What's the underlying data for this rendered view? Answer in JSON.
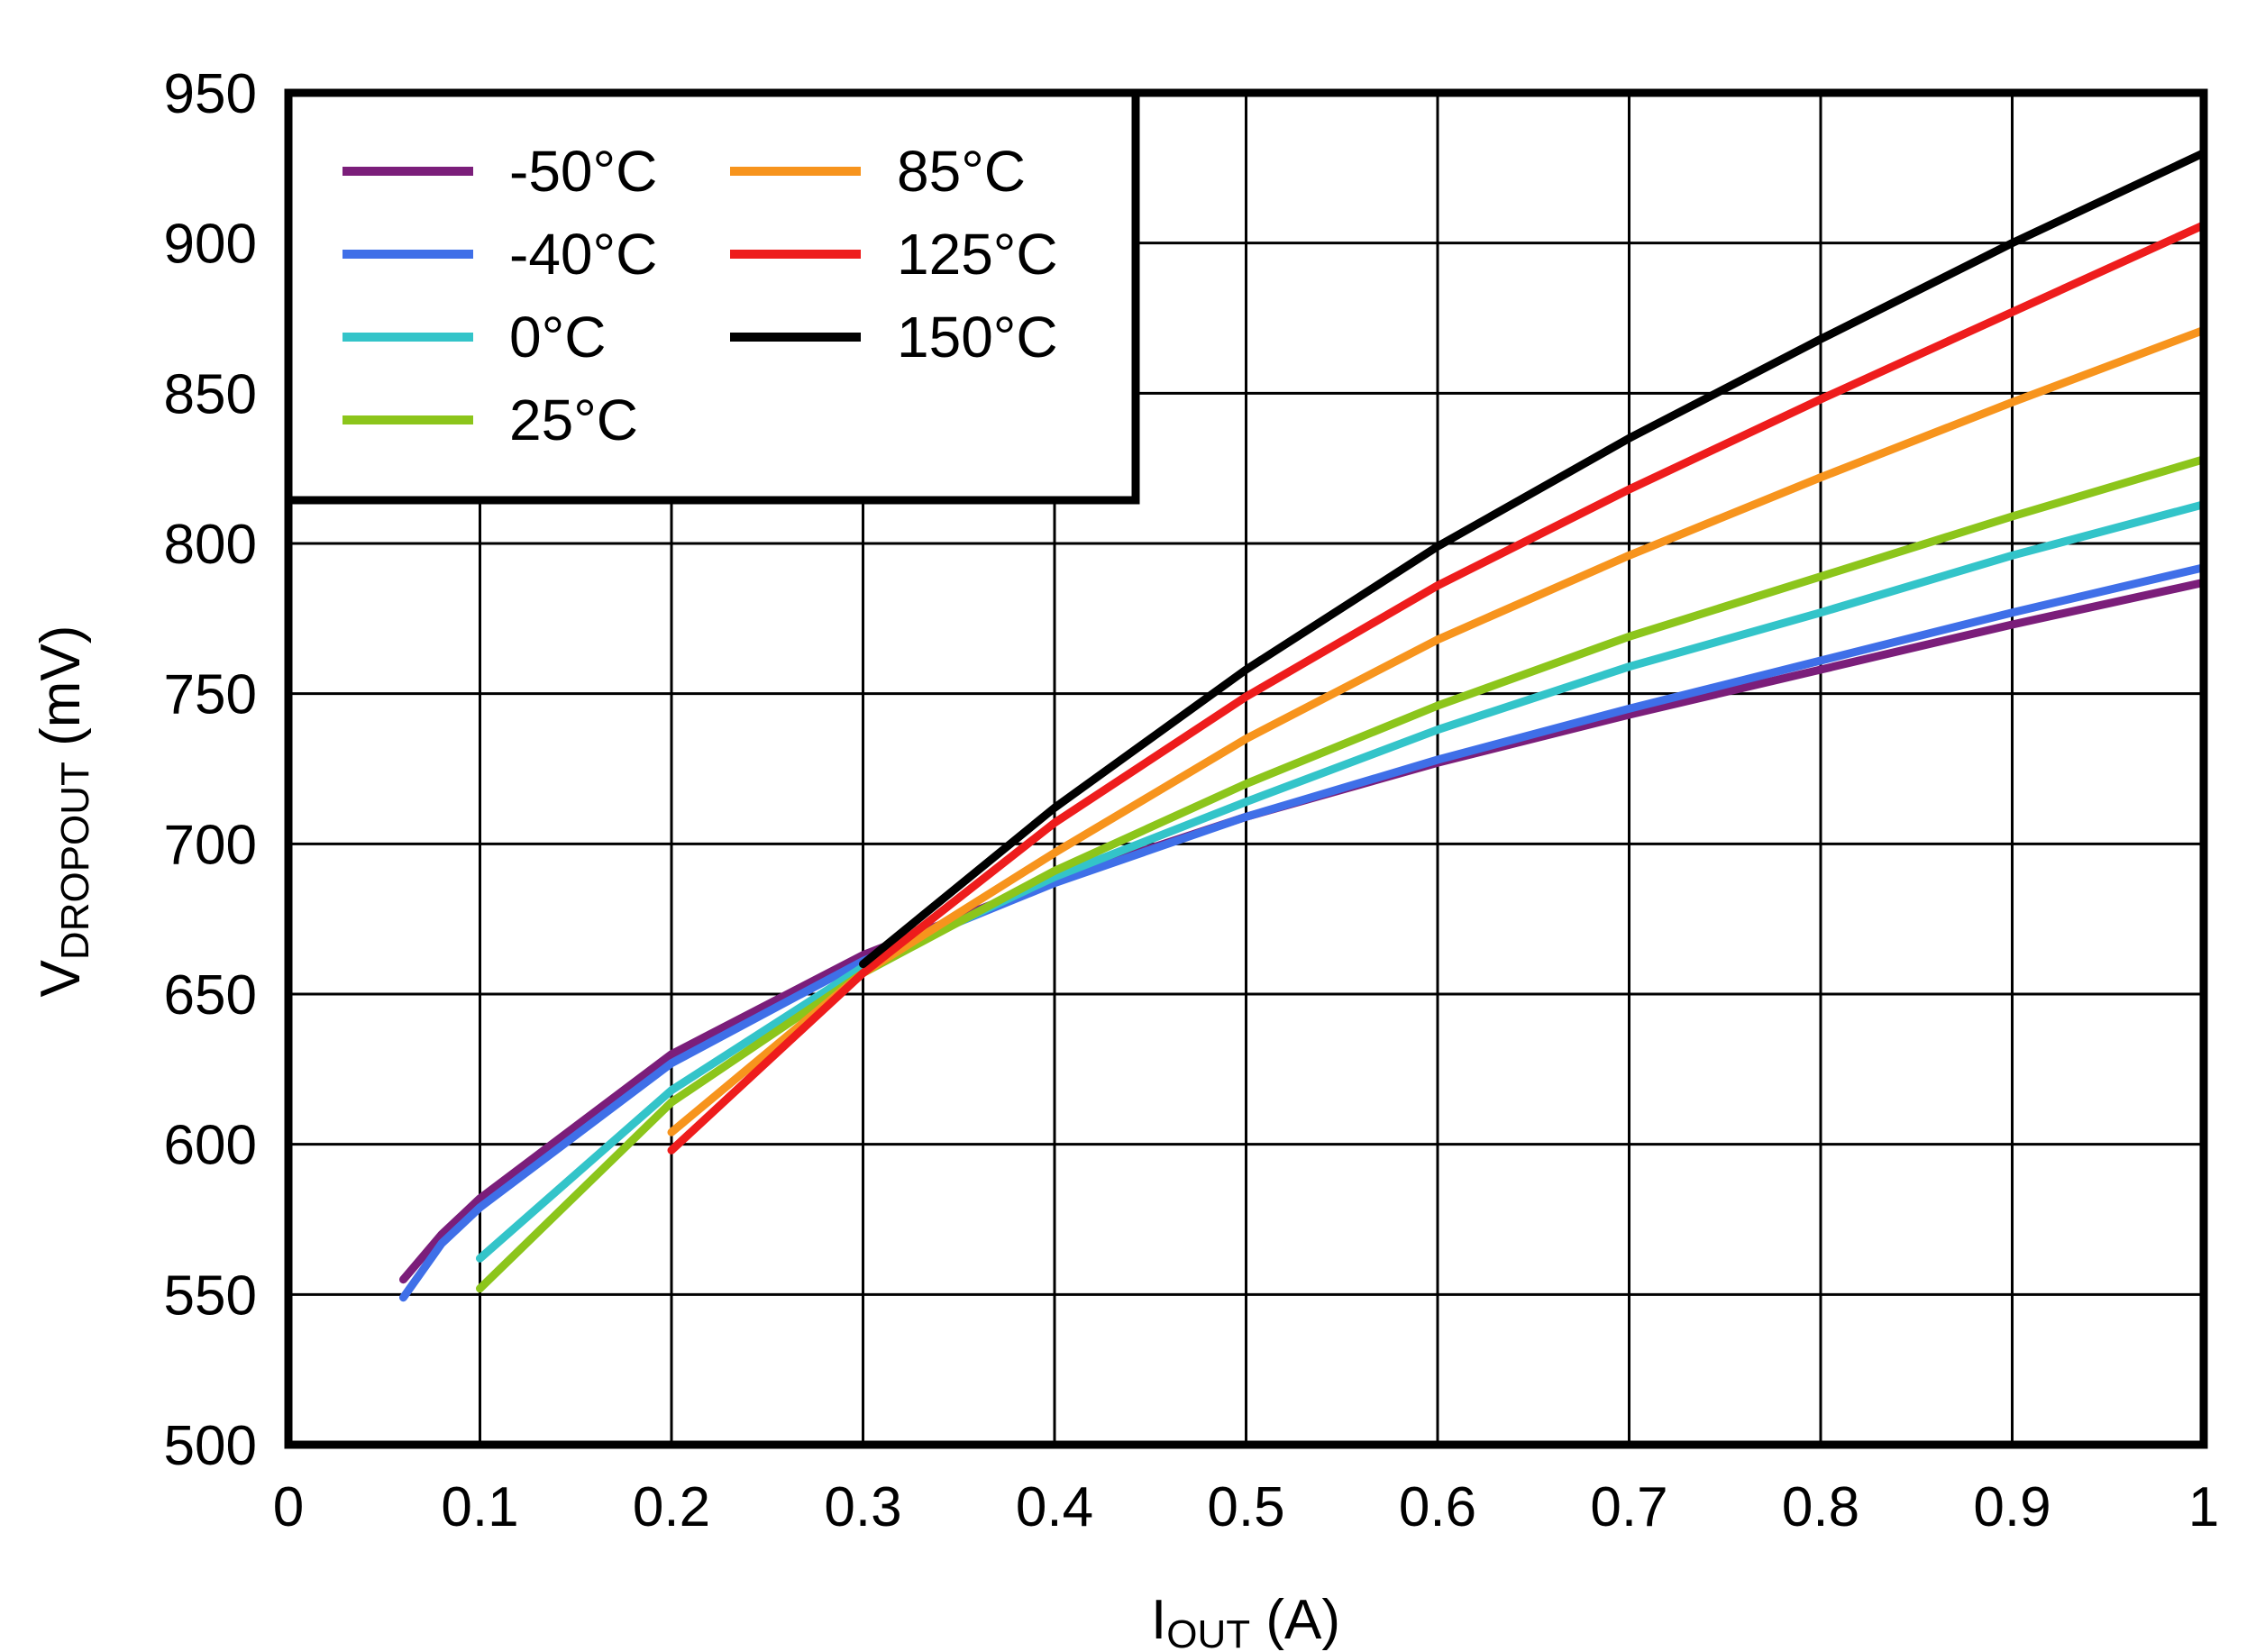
{
  "chart_data": {
    "type": "line",
    "title": "",
    "xlabel": {
      "main": "I",
      "sub": "OUT",
      "unit": " (A)"
    },
    "ylabel": {
      "main": "V",
      "sub": "DROPOUT",
      "unit": " (mV)"
    },
    "xlim": [
      0,
      1
    ],
    "ylim": [
      500,
      950
    ],
    "xticks": [
      0,
      0.1,
      0.2,
      0.3,
      0.4,
      0.5,
      0.6,
      0.7,
      0.8,
      0.9,
      1
    ],
    "xtick_labels": [
      "0",
      "0.1",
      "0.2",
      "0.3",
      "0.4",
      "0.5",
      "0.6",
      "0.7",
      "0.8",
      "0.9",
      "1"
    ],
    "yticks": [
      500,
      550,
      600,
      650,
      700,
      750,
      800,
      850,
      900,
      950
    ],
    "ytick_labels": [
      "500",
      "550",
      "600",
      "650",
      "700",
      "750",
      "800",
      "850",
      "900",
      "950"
    ],
    "grid": true,
    "legend_position": "top-left",
    "series": [
      {
        "name": "-50°C",
        "color": "#7B1E7A",
        "x": [
          0.06,
          0.08,
          0.1,
          0.2,
          0.3,
          0.4,
          0.5,
          0.6,
          0.7,
          0.8,
          0.9,
          1.0
        ],
        "y": [
          555,
          570,
          582,
          630,
          663,
          688,
          709,
          727,
          743,
          758,
          773,
          787
        ]
      },
      {
        "name": "-40°C",
        "color": "#3F6FE8",
        "x": [
          0.06,
          0.08,
          0.1,
          0.2,
          0.3,
          0.4,
          0.5,
          0.6,
          0.7,
          0.8,
          0.9,
          1.0
        ],
        "y": [
          549,
          567,
          579,
          627,
          661,
          687,
          709,
          728,
          745,
          761,
          777,
          792
        ]
      },
      {
        "name": "0°C",
        "color": "#33C4C9",
        "x": [
          0.1,
          0.2,
          0.3,
          0.4,
          0.5,
          0.6,
          0.7,
          0.8,
          0.9,
          1.0
        ],
        "y": [
          562,
          618,
          659,
          689,
          714,
          738,
          759,
          777,
          796,
          813
        ]
      },
      {
        "name": "25°C",
        "color": "#8CC51B",
        "x": [
          0.1,
          0.2,
          0.3,
          0.4,
          0.5,
          0.6,
          0.7,
          0.8,
          0.9,
          1.0
        ],
        "y": [
          552,
          614,
          657,
          691,
          720,
          746,
          769,
          789,
          809,
          828
        ]
      },
      {
        "name": "85°C",
        "color": "#F7941D",
        "x": [
          0.2,
          0.3,
          0.4,
          0.5,
          0.6,
          0.7,
          0.8,
          0.9,
          1.0
        ],
        "y": [
          604,
          657,
          697,
          735,
          768,
          796,
          822,
          847,
          871
        ]
      },
      {
        "name": "125°C",
        "color": "#EE1C1C",
        "x": [
          0.2,
          0.3,
          0.4,
          0.5,
          0.6,
          0.7,
          0.8,
          0.9,
          1.0
        ],
        "y": [
          598,
          657,
          707,
          749,
          786,
          818,
          848,
          877,
          906
        ]
      },
      {
        "name": "150°C",
        "color": "#000000",
        "x": [
          0.3,
          0.4,
          0.5,
          0.6,
          0.7,
          0.8,
          0.9,
          1.0
        ],
        "y": [
          660,
          712,
          758,
          799,
          835,
          868,
          900,
          930
        ]
      }
    ]
  }
}
